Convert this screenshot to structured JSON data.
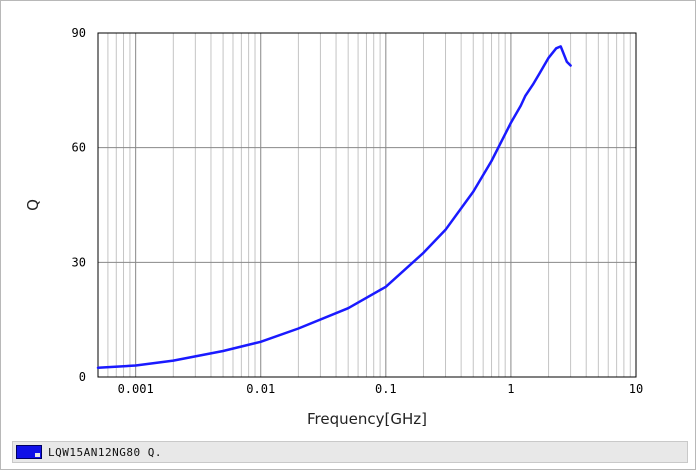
{
  "chart_data": {
    "type": "line",
    "title": "",
    "xlabel": "Frequency[GHz]",
    "ylabel": "Q",
    "x_scale": "log",
    "xlim": [
      0.0005,
      10
    ],
    "ylim": [
      0,
      90
    ],
    "x_ticks": [
      {
        "value": 0.001,
        "label": "0.001"
      },
      {
        "value": 0.01,
        "label": "0.01"
      },
      {
        "value": 0.1,
        "label": "0.1"
      },
      {
        "value": 1,
        "label": "1"
      },
      {
        "value": 10,
        "label": "10"
      }
    ],
    "y_ticks": [
      {
        "value": 0,
        "label": "0"
      },
      {
        "value": 30,
        "label": "30"
      },
      {
        "value": 60,
        "label": "60"
      },
      {
        "value": 90,
        "label": "90"
      }
    ],
    "grid": true,
    "legend_position": "bottom",
    "series": [
      {
        "name": "LQW15AN12NG80 Q.",
        "color": "#1a1aff",
        "x": [
          0.0005,
          0.001,
          0.002,
          0.005,
          0.01,
          0.02,
          0.05,
          0.1,
          0.2,
          0.3,
          0.5,
          0.7,
          1.0,
          1.2,
          1.3,
          1.5,
          1.7,
          2.0,
          2.3,
          2.5,
          2.8,
          3.0
        ],
        "y": [
          2.4,
          3.0,
          4.3,
          6.8,
          9.2,
          12.7,
          18.0,
          23.6,
          32.5,
          38.5,
          48.5,
          56.5,
          66.5,
          71.0,
          73.5,
          76.5,
          79.5,
          83.5,
          86.0,
          86.5,
          82.5,
          81.5
        ]
      }
    ]
  },
  "legend": {
    "label": "LQW15AN12NG80 Q.",
    "swatch_color": "#1010e8"
  }
}
